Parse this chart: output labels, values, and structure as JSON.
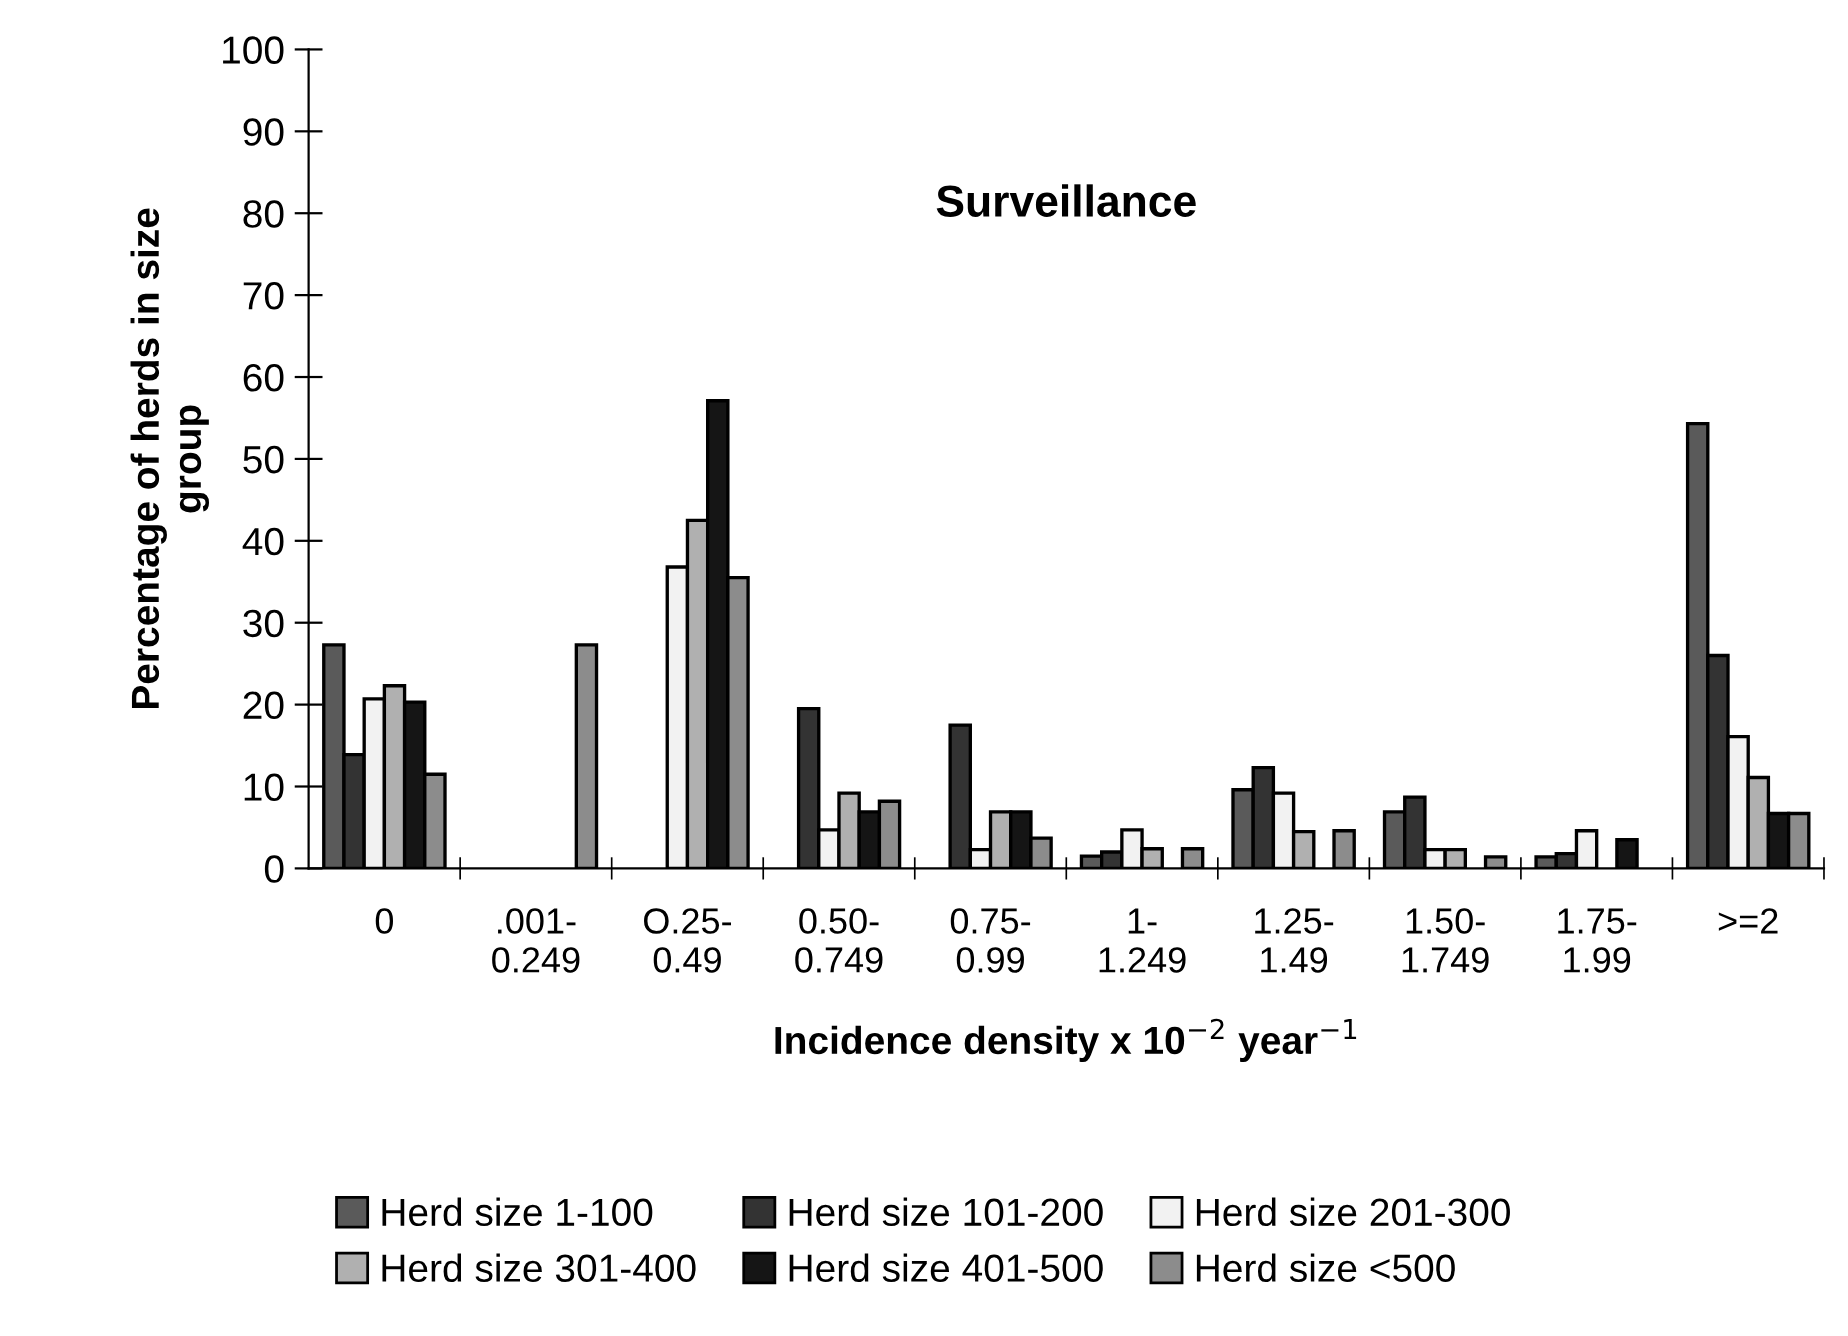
{
  "chart_data": {
    "type": "bar",
    "title": "Surveillance",
    "xlabel": "Incidence density x 10$^{−2}$ year$^{−1}$",
    "ylabel": "Percentage of herds in size\ngroup",
    "categories": [
      "0",
      ".001-\n0.249",
      "O.25-\n0.49",
      "0.50-\n0.749",
      "0.75-\n0.99",
      "1-\n1.249",
      "1.25-\n1.49",
      "1.50-\n1.749",
      "1.75-\n1.99",
      ">=2"
    ],
    "series": [
      {
        "name": "Herd size 1-100",
        "color": "#5a5a5a",
        "values": [
          27.3,
          null,
          null,
          null,
          null,
          1.5,
          9.6,
          6.9,
          1.4,
          54.3
        ]
      },
      {
        "name": "Herd size 101-200",
        "color": "#333333",
        "values": [
          13.9,
          null,
          null,
          19.5,
          17.5,
          2.0,
          12.3,
          8.7,
          1.8,
          26
        ]
      },
      {
        "name": "Herd size 201-300",
        "color": "#f2f2f2",
        "values": [
          20.7,
          null,
          36.8,
          4.7,
          2.3,
          4.7,
          9.2,
          2.3,
          4.6,
          16.1
        ]
      },
      {
        "name": "Herd size 301-400",
        "color": "#b0b0b0",
        "values": [
          22.3,
          null,
          42.5,
          9.2,
          6.9,
          2.4,
          4.5,
          2.3,
          null,
          11.1
        ]
      },
      {
        "name": "Herd size 401-500",
        "color": "#151515",
        "values": [
          20.3,
          null,
          57.1,
          6.9,
          6.9,
          null,
          null,
          null,
          3.5,
          6.7
        ]
      },
      {
        "name": "Herd size <500",
        "color": "#8c8c8c",
        "values": [
          11.5,
          27.3,
          35.5,
          8.2,
          3.7,
          2.4,
          4.6,
          1.4,
          null,
          6.7
        ]
      }
    ],
    "ylim": [
      0,
      100
    ],
    "yticks": [
      0,
      10,
      20,
      30,
      40,
      50,
      60,
      70,
      80,
      90,
      100
    ],
    "grid": false,
    "legend": "bottom"
  }
}
